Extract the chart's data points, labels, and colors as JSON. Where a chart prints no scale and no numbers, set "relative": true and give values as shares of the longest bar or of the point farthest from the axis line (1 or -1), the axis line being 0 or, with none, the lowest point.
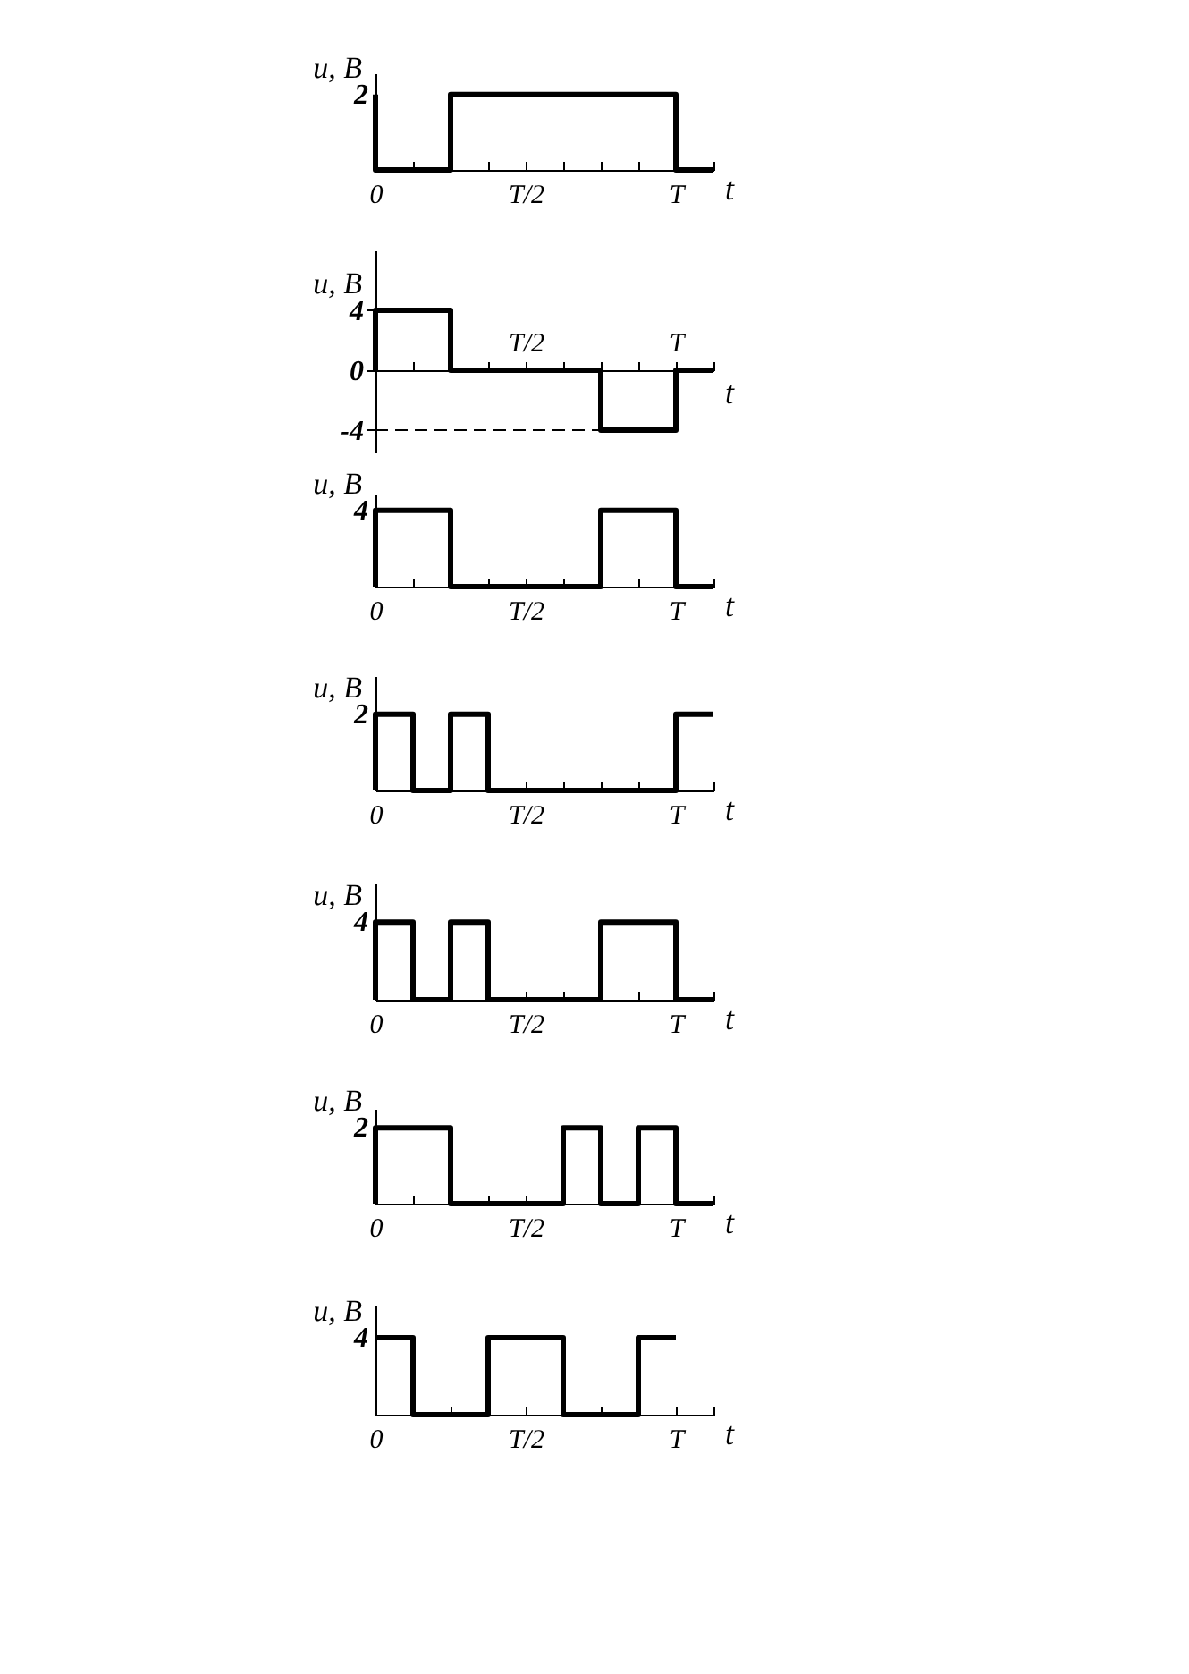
{
  "chart_data": [
    {
      "type": "step",
      "relative": true,
      "xlabel": "t",
      "ylabel": "u, B",
      "grid": false,
      "categories": [
        "0",
        null,
        null,
        null,
        "T/2",
        null,
        null,
        null,
        "T",
        null
      ],
      "annotations": [
        "2"
      ],
      "series": [
        {
          "color": "#000000",
          "values": [
            1,
            0,
            0,
            1,
            1,
            1,
            1,
            1,
            1,
            0
          ]
        }
      ]
    },
    {
      "type": "step",
      "xlabel": "t",
      "ylabel": "u, B",
      "grid": false,
      "categories": [
        null,
        null,
        null,
        null,
        "T/2",
        null,
        null,
        null,
        "T",
        null
      ],
      "ylim": [
        -5.5,
        8
      ],
      "yticks": [
        4,
        0,
        -4
      ],
      "ref_lines": [
        {
          "axis": "y",
          "value": -4,
          "color": "#000000",
          "line_style": "dashed"
        }
      ],
      "series": [
        {
          "color": "#000000",
          "values": [
            0,
            4,
            4,
            0,
            0,
            0,
            0,
            -4,
            -4,
            0
          ]
        }
      ]
    },
    {
      "type": "step",
      "relative": true,
      "xlabel": "t",
      "ylabel": "u, B",
      "grid": false,
      "categories": [
        "0",
        null,
        null,
        null,
        "T/2",
        null,
        null,
        null,
        "T",
        null
      ],
      "annotations": [
        "4"
      ],
      "series": [
        {
          "color": "#000000",
          "values": [
            0,
            1,
            1,
            0,
            0,
            0,
            0,
            1,
            1,
            0
          ]
        }
      ]
    },
    {
      "type": "step",
      "relative": true,
      "xlabel": "t",
      "ylabel": "u, B",
      "grid": false,
      "categories": [
        "0",
        null,
        null,
        null,
        "T/2",
        null,
        null,
        null,
        "T",
        null
      ],
      "annotations": [
        "2"
      ],
      "series": [
        {
          "color": "#000000",
          "values": [
            0,
            1,
            0,
            1,
            0,
            0,
            0,
            0,
            0,
            1
          ]
        }
      ]
    },
    {
      "type": "step",
      "relative": true,
      "xlabel": "t",
      "ylabel": "u, B",
      "grid": false,
      "categories": [
        "0",
        null,
        null,
        null,
        "T/2",
        null,
        null,
        null,
        "T",
        null
      ],
      "annotations": [
        "4"
      ],
      "series": [
        {
          "color": "#000000",
          "values": [
            0,
            1,
            0,
            1,
            0,
            0,
            0,
            1,
            1,
            0
          ]
        }
      ]
    },
    {
      "type": "step",
      "relative": true,
      "xlabel": "t",
      "ylabel": "u, B",
      "grid": false,
      "categories": [
        "0",
        null,
        null,
        null,
        "T/2",
        null,
        null,
        null,
        "T",
        null
      ],
      "annotations": [
        "2"
      ],
      "series": [
        {
          "color": "#000000",
          "values": [
            0,
            1,
            1,
            0,
            0,
            0,
            1,
            0,
            1,
            0
          ]
        }
      ]
    },
    {
      "type": "step",
      "relative": true,
      "xlabel": "t",
      "ylabel": "u, B",
      "grid": false,
      "categories": [
        "0",
        null,
        null,
        null,
        "T/2",
        null,
        null,
        null,
        "T",
        null
      ],
      "annotations": [
        "4"
      ],
      "series": [
        {
          "color": "#000000",
          "values": [
            1,
            1,
            0,
            0,
            1,
            1,
            0,
            0,
            1,
            null
          ]
        }
      ]
    }
  ]
}
